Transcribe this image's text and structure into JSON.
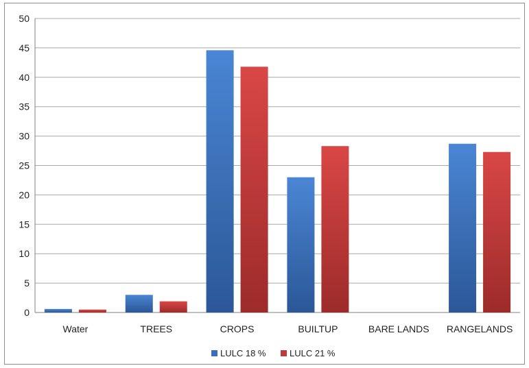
{
  "chart_data": {
    "type": "bar",
    "categories": [
      "Water",
      "TREES",
      "CROPS",
      "BUILTUP",
      "BARE LANDS",
      "RANGELANDS"
    ],
    "series": [
      {
        "name": "LULC 18 %",
        "color": "#3a6fbd",
        "values": [
          0.6,
          3.0,
          44.6,
          23.0,
          0,
          28.7
        ]
      },
      {
        "name": "LULC 21 %",
        "color": "#c0393b",
        "values": [
          0.5,
          1.9,
          41.8,
          28.3,
          0,
          27.3
        ]
      }
    ],
    "title": "",
    "xlabel": "",
    "ylabel": "",
    "ylim": [
      0,
      50
    ],
    "yticks": [
      0,
      5,
      10,
      15,
      20,
      25,
      30,
      35,
      40,
      45,
      50
    ],
    "grid": true,
    "legend_position": "bottom"
  }
}
